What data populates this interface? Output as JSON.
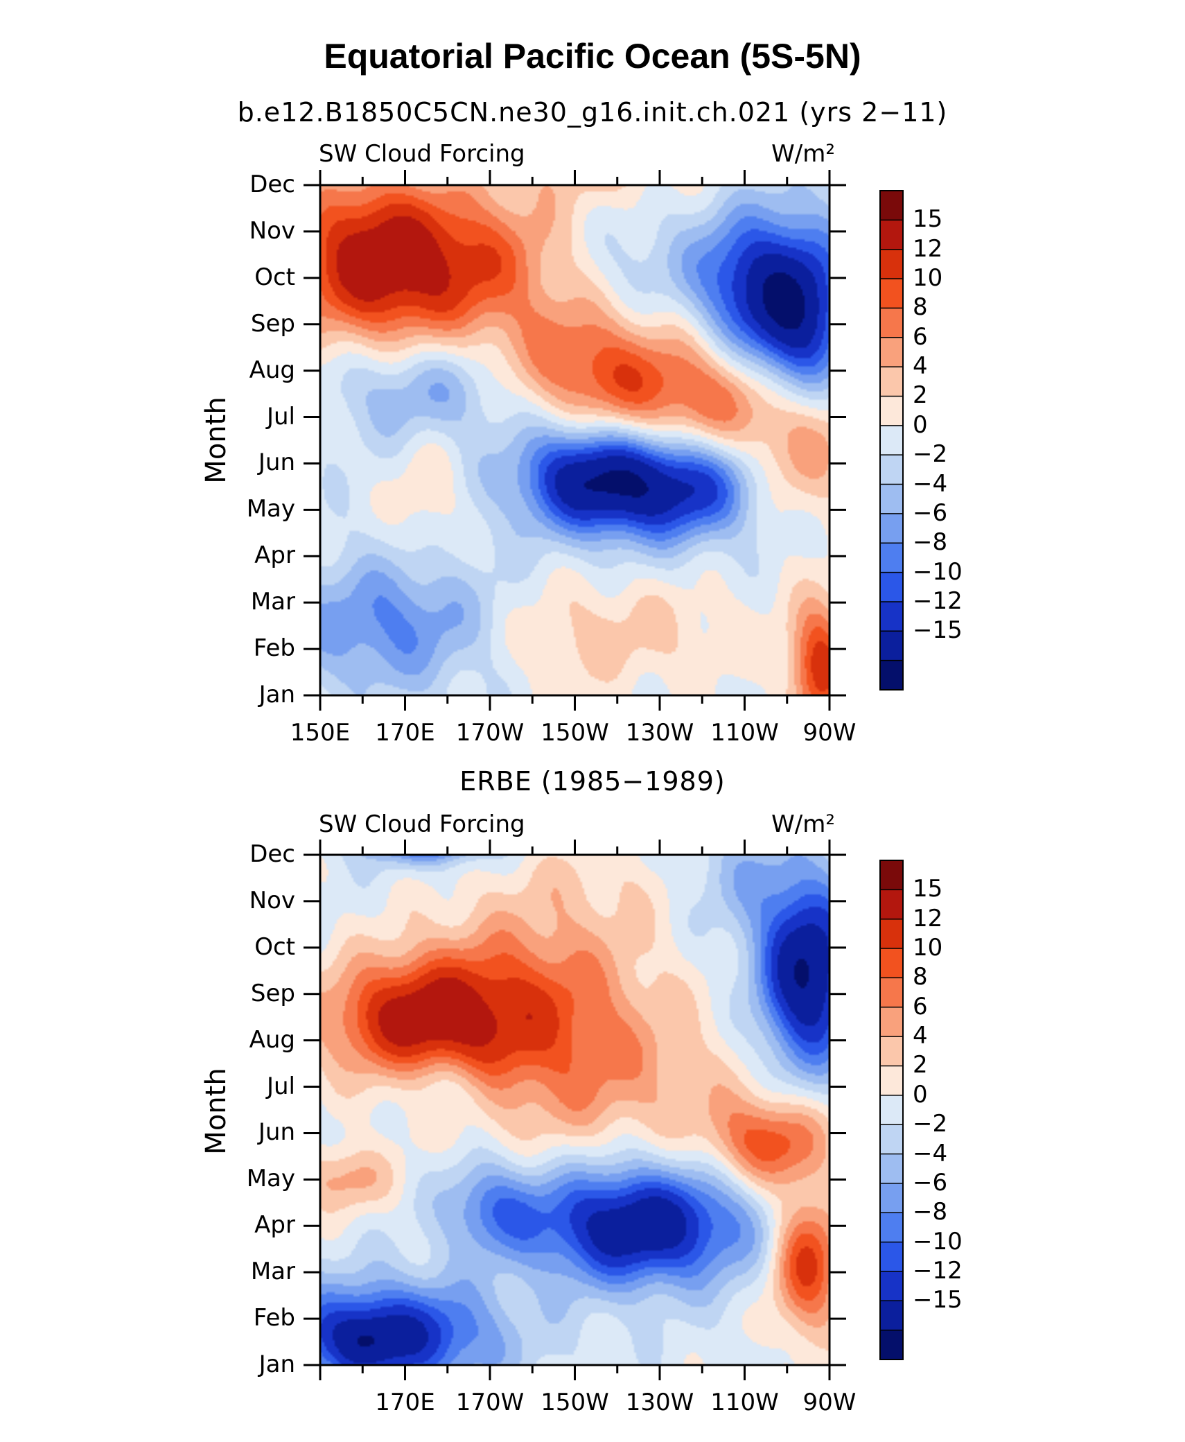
{
  "figure": {
    "title": "Equatorial Pacific Ocean (5S-5N)",
    "colors": {
      "levels_palette": [
        "#7a0a0a",
        "#b3170e",
        "#d8310c",
        "#f2521f",
        "#f6774b",
        "#f9a17c",
        "#fbc7ab",
        "#fde8da",
        "#dce9f7",
        "#bfd5f3",
        "#9ebdf1",
        "#779ff0",
        "#4e7ef0",
        "#2b57e8",
        "#1733c7",
        "#0b1f9d",
        "#040f6b"
      ]
    },
    "colorbar_labels": [
      "15",
      "12",
      "10",
      "8",
      "6",
      "4",
      "2",
      "0",
      "−2",
      "−4",
      "−6",
      "−8",
      "−10",
      "−12",
      "−15"
    ]
  },
  "chart_data": [
    {
      "type": "heatmap",
      "title": "b.e12.B1850C5CN.ne30_g16.init.ch.021 (yrs 2−11)",
      "left_label": "SW Cloud Forcing",
      "right_label": "W/m²",
      "ylabel": "Month",
      "y_ticks": [
        "Jan",
        "Feb",
        "Mar",
        "Apr",
        "May",
        "Jun",
        "Jul",
        "Aug",
        "Sep",
        "Oct",
        "Nov",
        "Dec"
      ],
      "x_ticks": [
        "150E",
        "170E",
        "170W",
        "150W",
        "130W",
        "110W",
        "90W"
      ],
      "x_range": [
        150,
        270
      ],
      "x_tick_values": [
        150,
        170,
        190,
        210,
        230,
        250,
        270
      ],
      "features": [
        {
          "x": 175,
          "m": 9.3,
          "sx": 22,
          "sy": 1.2,
          "a": 13
        },
        {
          "x": 160,
          "m": 9.6,
          "sx": 12,
          "sy": 1.4,
          "a": 6
        },
        {
          "x": 212,
          "m": 7.2,
          "sx": 14,
          "sy": 0.9,
          "a": 7
        },
        {
          "x": 240,
          "m": 6.4,
          "sx": 22,
          "sy": 0.9,
          "a": 9
        },
        {
          "x": 262,
          "m": 5.0,
          "sx": 10,
          "sy": 1.0,
          "a": 7
        },
        {
          "x": 228,
          "m": 4.5,
          "sx": 18,
          "sy": 0.8,
          "a": -17
        },
        {
          "x": 210,
          "m": 4.9,
          "sx": 10,
          "sy": 0.8,
          "a": -7
        },
        {
          "x": 175,
          "m": 6.6,
          "sx": 16,
          "sy": 0.8,
          "a": -6
        },
        {
          "x": 168,
          "m": 1.5,
          "sx": 18,
          "sy": 1.0,
          "a": -8
        },
        {
          "x": 262,
          "m": 8.2,
          "sx": 9,
          "sy": 1.4,
          "a": -18
        },
        {
          "x": 248,
          "m": 9.0,
          "sx": 8,
          "sy": 1.0,
          "a": -8
        },
        {
          "x": 225,
          "m": 9.3,
          "sx": 12,
          "sy": 0.8,
          "a": -3
        },
        {
          "x": 268,
          "m": 0.6,
          "sx": 5,
          "sy": 1.0,
          "a": 12
        },
        {
          "x": 215,
          "m": 1.3,
          "sx": 25,
          "sy": 0.9,
          "a": 4
        },
        {
          "x": 175,
          "m": 4.4,
          "sx": 6,
          "sy": 1.0,
          "a": 3
        },
        {
          "x": 215,
          "m": 11.5,
          "sx": 16,
          "sy": 0.6,
          "a": 4
        }
      ]
    },
    {
      "type": "heatmap",
      "title": "ERBE (1985−1989)",
      "left_label": "SW Cloud Forcing",
      "right_label": "W/m²",
      "ylabel": "Month",
      "y_ticks": [
        "Jan",
        "Feb",
        "Mar",
        "Apr",
        "May",
        "Jun",
        "Jul",
        "Aug",
        "Sep",
        "Oct",
        "Nov",
        "Dec"
      ],
      "x_ticks": [
        "170E",
        "170W",
        "150W",
        "130W",
        "110W",
        "90W"
      ],
      "x_range": [
        150,
        270
      ],
      "x_tick_values": [
        170,
        190,
        210,
        230,
        250,
        270
      ],
      "features": [
        {
          "x": 172,
          "m": 7.5,
          "sx": 16,
          "sy": 0.9,
          "a": 13
        },
        {
          "x": 200,
          "m": 8.0,
          "sx": 20,
          "sy": 1.4,
          "a": 8
        },
        {
          "x": 215,
          "m": 6.0,
          "sx": 25,
          "sy": 1.2,
          "a": 5
        },
        {
          "x": 256,
          "m": 4.8,
          "sx": 10,
          "sy": 0.7,
          "a": 10
        },
        {
          "x": 265,
          "m": 2.2,
          "sx": 6,
          "sy": 1.1,
          "a": 12
        },
        {
          "x": 155,
          "m": 4.0,
          "sx": 8,
          "sy": 0.5,
          "a": 6
        },
        {
          "x": 225,
          "m": 3.0,
          "sx": 18,
          "sy": 0.9,
          "a": -17
        },
        {
          "x": 190,
          "m": 3.4,
          "sx": 8,
          "sy": 0.7,
          "a": -7
        },
        {
          "x": 165,
          "m": 0.6,
          "sx": 18,
          "sy": 0.8,
          "a": -15
        },
        {
          "x": 175,
          "m": 11.5,
          "sx": 10,
          "sy": 0.4,
          "a": -17
        },
        {
          "x": 265,
          "m": 8.4,
          "sx": 8,
          "sy": 1.4,
          "a": -18
        },
        {
          "x": 250,
          "m": 10.5,
          "sx": 10,
          "sy": 0.9,
          "a": -4
        },
        {
          "x": 180,
          "m": 6.0,
          "sx": 7,
          "sy": 0.5,
          "a": -4
        },
        {
          "x": 215,
          "m": 10.5,
          "sx": 18,
          "sy": 0.8,
          "a": 2
        },
        {
          "x": 160,
          "m": 0.5,
          "sx": 5,
          "sy": 0.4,
          "a": -4
        }
      ]
    }
  ]
}
